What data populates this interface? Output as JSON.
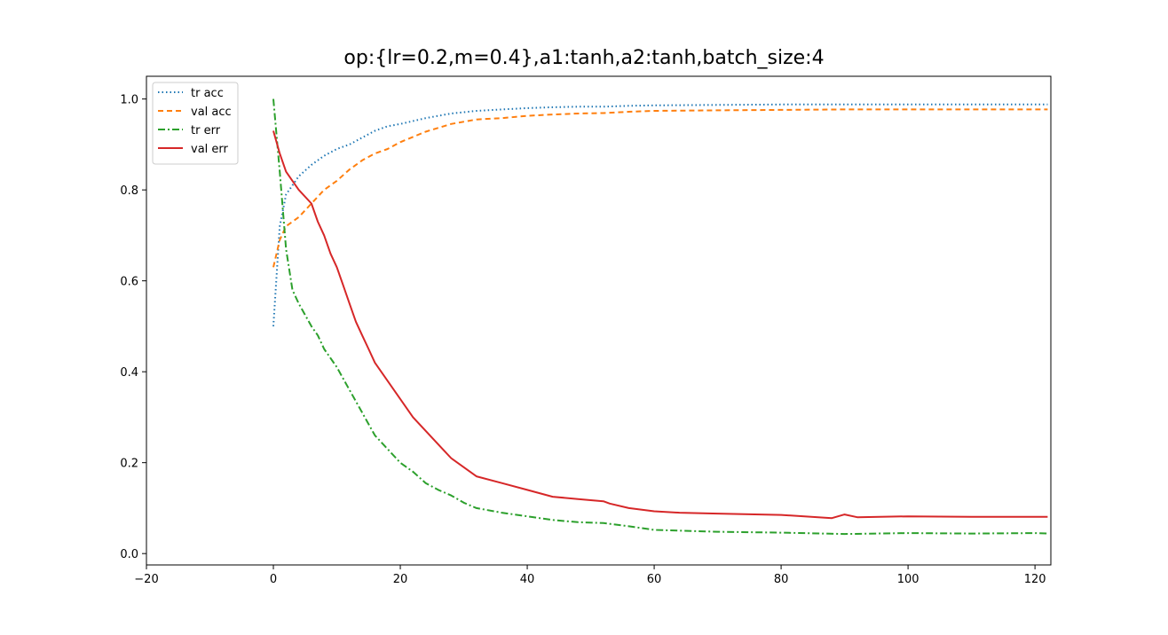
{
  "chart_data": {
    "type": "line",
    "title": "op:{lr=0.2,m=0.4},a1:tanh,a2:tanh,batch_size:4",
    "xlabel": "",
    "ylabel": "",
    "xlim": [
      -20,
      122.5
    ],
    "ylim": [
      -0.025,
      1.05
    ],
    "xticks": [
      -20,
      0,
      20,
      40,
      60,
      80,
      100,
      120
    ],
    "xtick_labels": [
      "−20",
      "0",
      "20",
      "40",
      "60",
      "80",
      "100",
      "120"
    ],
    "yticks": [
      0.0,
      0.2,
      0.4,
      0.6,
      0.8,
      1.0
    ],
    "ytick_labels": [
      "0.0",
      "0.2",
      "0.4",
      "0.6",
      "0.8",
      "1.0"
    ],
    "grid": false,
    "legend_position": "upper-left",
    "series": [
      {
        "name": "tr acc",
        "color": "#1f77b4",
        "style": "dotted",
        "x": [
          0,
          1,
          2,
          3,
          4,
          6,
          8,
          10,
          12,
          14,
          16,
          18,
          20,
          24,
          28,
          32,
          36,
          40,
          44,
          48,
          52,
          56,
          60,
          70,
          80,
          90,
          100,
          110,
          120,
          122
        ],
        "y": [
          0.5,
          0.72,
          0.79,
          0.81,
          0.83,
          0.855,
          0.875,
          0.89,
          0.9,
          0.915,
          0.93,
          0.94,
          0.945,
          0.958,
          0.968,
          0.974,
          0.977,
          0.98,
          0.982,
          0.983,
          0.983,
          0.985,
          0.986,
          0.987,
          0.988,
          0.988,
          0.988,
          0.988,
          0.988,
          0.988
        ]
      },
      {
        "name": "val acc",
        "color": "#ff7f0e",
        "style": "dashed",
        "x": [
          0,
          1,
          2,
          3,
          4,
          6,
          8,
          10,
          12,
          14,
          16,
          18,
          20,
          24,
          28,
          32,
          36,
          40,
          44,
          48,
          52,
          56,
          60,
          70,
          80,
          90,
          100,
          110,
          120,
          122
        ],
        "y": [
          0.63,
          0.69,
          0.72,
          0.73,
          0.74,
          0.77,
          0.8,
          0.82,
          0.845,
          0.865,
          0.88,
          0.89,
          0.905,
          0.928,
          0.945,
          0.955,
          0.958,
          0.963,
          0.966,
          0.968,
          0.969,
          0.972,
          0.974,
          0.975,
          0.976,
          0.977,
          0.977,
          0.977,
          0.977,
          0.977
        ]
      },
      {
        "name": "tr err",
        "color": "#2ca02c",
        "style": "dashdot",
        "x": [
          0,
          1,
          2,
          3,
          4,
          6,
          7,
          8,
          10,
          12,
          14,
          16,
          18,
          20,
          22,
          24,
          26,
          28,
          30,
          32,
          36,
          40,
          44,
          48,
          52,
          56,
          60,
          70,
          80,
          90,
          100,
          110,
          120,
          122
        ],
        "y": [
          1.0,
          0.84,
          0.67,
          0.58,
          0.55,
          0.5,
          0.48,
          0.45,
          0.41,
          0.36,
          0.31,
          0.26,
          0.23,
          0.2,
          0.18,
          0.155,
          0.14,
          0.128,
          0.112,
          0.1,
          0.09,
          0.082,
          0.074,
          0.069,
          0.067,
          0.06,
          0.052,
          0.048,
          0.046,
          0.043,
          0.045,
          0.044,
          0.045,
          0.044
        ]
      },
      {
        "name": "val err",
        "color": "#d62728",
        "style": "solid",
        "x": [
          0,
          1,
          2,
          3,
          4,
          6,
          7,
          8,
          9,
          10,
          11,
          12,
          13,
          14,
          15,
          16,
          18,
          20,
          22,
          24,
          26,
          28,
          30,
          32,
          36,
          40,
          44,
          48,
          52,
          53,
          56,
          60,
          64,
          70,
          80,
          88,
          90,
          92,
          100,
          110,
          120,
          122
        ],
        "y": [
          0.93,
          0.88,
          0.84,
          0.82,
          0.8,
          0.77,
          0.73,
          0.7,
          0.66,
          0.63,
          0.59,
          0.55,
          0.51,
          0.48,
          0.45,
          0.42,
          0.38,
          0.34,
          0.3,
          0.27,
          0.24,
          0.21,
          0.19,
          0.17,
          0.155,
          0.14,
          0.125,
          0.12,
          0.115,
          0.11,
          0.1,
          0.093,
          0.09,
          0.088,
          0.085,
          0.078,
          0.086,
          0.08,
          0.082,
          0.081,
          0.081,
          0.081
        ]
      }
    ]
  }
}
